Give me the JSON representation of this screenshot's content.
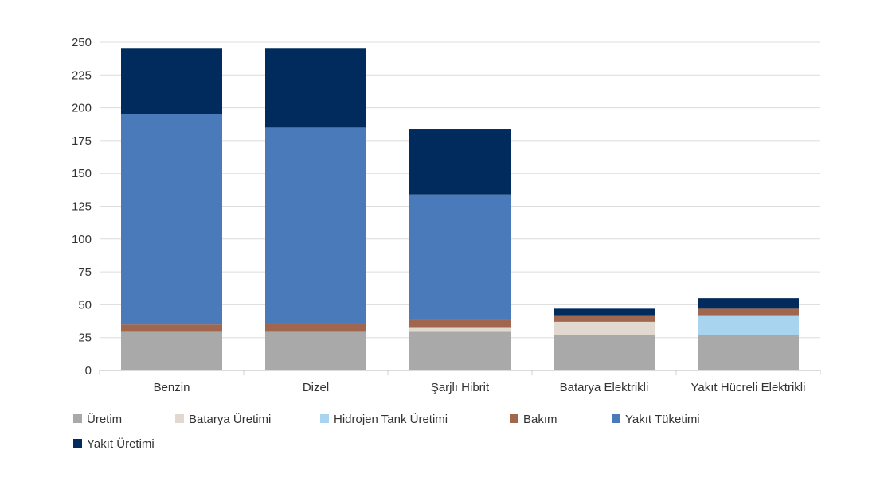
{
  "chart_data": {
    "type": "bar",
    "stacked": true,
    "categories": [
      "Benzin",
      "Dizel",
      "Şarjlı Hibrit",
      "Batarya Elektrikli",
      "Yakıt Hücreli Elektrikli"
    ],
    "series": [
      {
        "name": "Üretim",
        "color": "#a9a9a9",
        "values": [
          30,
          30,
          30,
          27,
          27
        ]
      },
      {
        "name": "Batarya Üretimi",
        "color": "#e1d8d0",
        "values": [
          0,
          0,
          3,
          10,
          0
        ]
      },
      {
        "name": "Hidrojen Tank Üretimi",
        "color": "#a8d4f0",
        "values": [
          0,
          0,
          0,
          0,
          15
        ]
      },
      {
        "name": "Bakım",
        "color": "#a0664e",
        "values": [
          5,
          6,
          6,
          5,
          5
        ]
      },
      {
        "name": "Yakıt Tüketimi",
        "color": "#4a7aba",
        "values": [
          160,
          149,
          95,
          0,
          0
        ]
      },
      {
        "name": "Yakıt Üretimi",
        "color": "#002b5c",
        "values": [
          50,
          60,
          50,
          5,
          8
        ]
      }
    ],
    "ylim": [
      0,
      250
    ],
    "yticks": [
      0,
      25,
      50,
      75,
      100,
      125,
      150,
      175,
      200,
      225,
      250
    ],
    "grid": true,
    "legend_position": "bottom-left"
  }
}
